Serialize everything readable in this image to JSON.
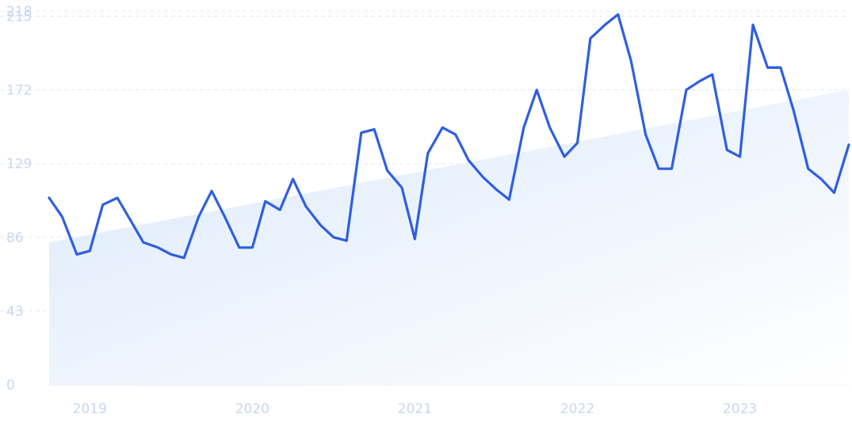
{
  "chart_data": {
    "type": "line",
    "title": "",
    "xlabel": "",
    "ylabel": "",
    "ylim": [
      0,
      218
    ],
    "yticks": [
      0,
      43,
      86,
      129,
      172,
      215,
      218
    ],
    "xtick_labels": [
      "2019",
      "2020",
      "2021",
      "2022",
      "2023"
    ],
    "xtick_positions": [
      2019.0,
      2020.0,
      2021.0,
      2022.0,
      2023.0
    ],
    "grid": true,
    "legend": "none",
    "colors": {
      "line": "#2f5fe0",
      "trend_area": "#dbe9fb",
      "grid": "#e3e8f2",
      "tick_text": "#c9d6ee"
    },
    "series": [
      {
        "x": [
          2018.75,
          2018.83,
          2018.92,
          2019.0,
          2019.08,
          2019.17,
          2019.25,
          2019.33,
          2019.42,
          2019.5,
          2019.58,
          2019.67,
          2019.75,
          2019.83,
          2019.92,
          2020.0,
          2020.08,
          2020.17,
          2020.25,
          2020.33,
          2020.42,
          2020.5,
          2020.58,
          2020.67,
          2020.75,
          2020.83,
          2020.92,
          2021.0,
          2021.08,
          2021.17,
          2021.25,
          2021.33,
          2021.42,
          2021.5,
          2021.58,
          2021.67,
          2021.75,
          2021.83,
          2021.92,
          2022.0,
          2022.08,
          2022.17,
          2022.25,
          2022.33,
          2022.42,
          2022.5,
          2022.58,
          2022.67,
          2022.75,
          2022.83,
          2022.92,
          2023.0,
          2023.08,
          2023.17,
          2023.25,
          2023.33,
          2023.42,
          2023.5,
          2023.58,
          2023.67
        ],
        "values": [
          109,
          98,
          76,
          78,
          105,
          109,
          96,
          83,
          80,
          76,
          74,
          98,
          113,
          98,
          80,
          80,
          107,
          102,
          120,
          104,
          93,
          86,
          84,
          147,
          149,
          125,
          115,
          85,
          135,
          150,
          146,
          131,
          121,
          114,
          108,
          150,
          172,
          150,
          133,
          141,
          202,
          210,
          216,
          189,
          146,
          126,
          126,
          172,
          177,
          181,
          137,
          133,
          210,
          185,
          185,
          160,
          126,
          120,
          112,
          140
        ]
      },
      {
        "name": "trend",
        "x": [
          2018.75,
          2023.67
        ],
        "values": [
          83,
          172
        ]
      }
    ]
  }
}
